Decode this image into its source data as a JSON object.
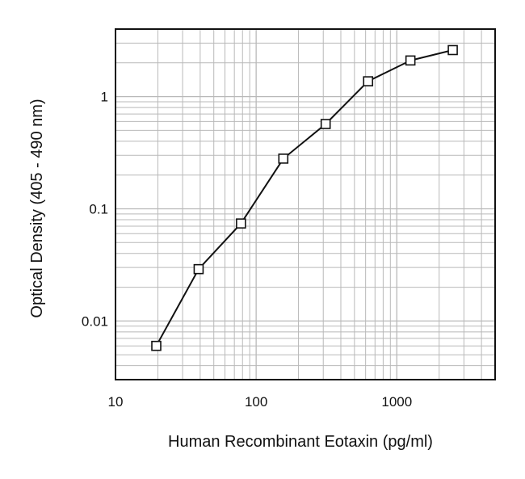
{
  "chart_data": {
    "type": "line",
    "title": "",
    "xlabel": "Human Recombinant Eotaxin (pg/ml)",
    "ylabel": "Optical Density (405 - 490 nm)",
    "x_scale": "log",
    "y_scale": "log",
    "xlim": [
      10,
      5000
    ],
    "ylim": [
      0.003,
      4
    ],
    "x_ticks": [
      10,
      100,
      1000
    ],
    "x_tick_labels": [
      "10",
      "100",
      "1000"
    ],
    "y_ticks": [
      0.01,
      0.1,
      1
    ],
    "y_tick_labels": [
      "0.01",
      "0.1",
      "1"
    ],
    "grid": true,
    "marker": "open-square",
    "line_color": "#111111",
    "grid_color": "#b9b9b9",
    "series": [
      {
        "x": [
          19.5,
          39,
          78,
          156,
          312,
          625,
          1250,
          2500
        ],
        "y": [
          0.006,
          0.029,
          0.074,
          0.28,
          0.57,
          1.37,
          2.1,
          2.6
        ]
      }
    ]
  }
}
